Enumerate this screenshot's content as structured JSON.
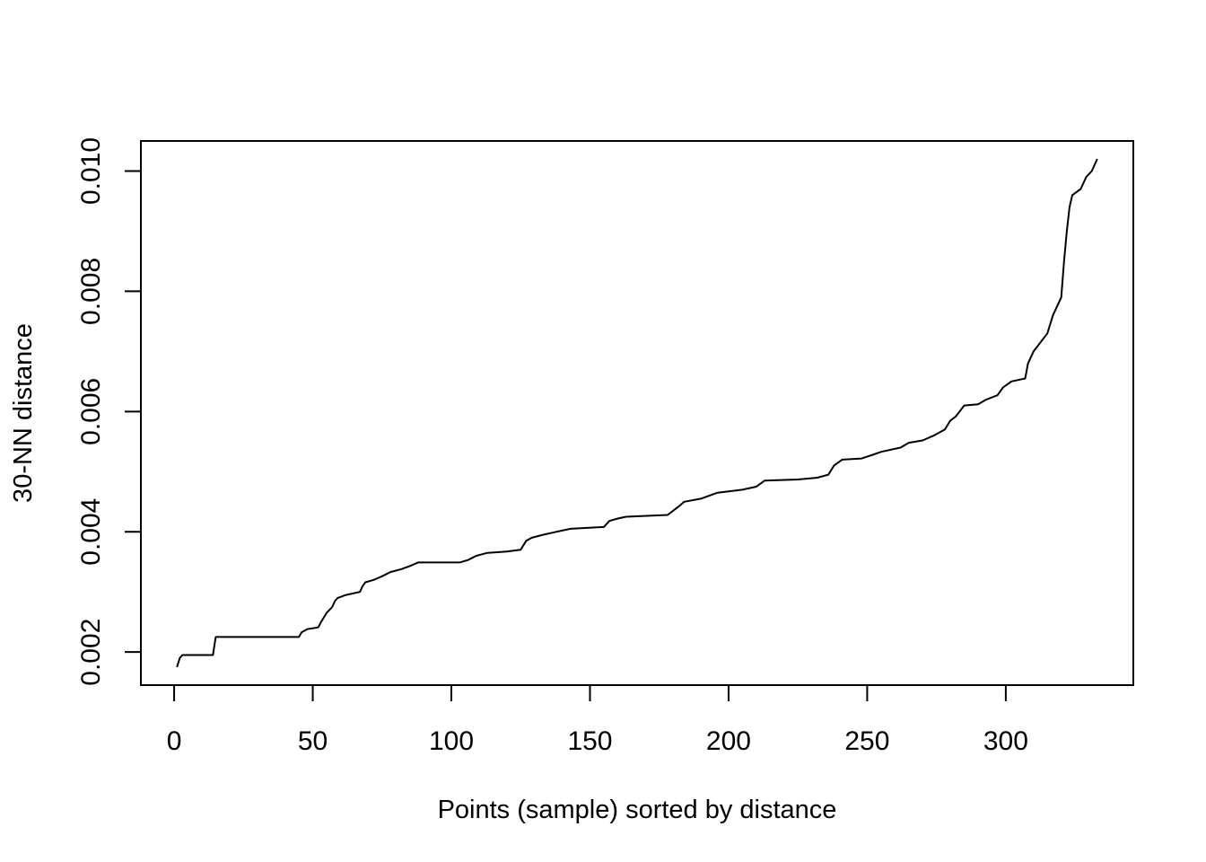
{
  "chart_data": {
    "type": "line",
    "xlabel": "Points (sample) sorted by distance",
    "ylabel": "30-NN distance",
    "xlim": [
      -12,
      346
    ],
    "ylim": [
      0.00145,
      0.0105
    ],
    "xticks": [
      {
        "value": 0,
        "label": "0"
      },
      {
        "value": 50,
        "label": "50"
      },
      {
        "value": 100,
        "label": "100"
      },
      {
        "value": 150,
        "label": "150"
      },
      {
        "value": 200,
        "label": "200"
      },
      {
        "value": 250,
        "label": "250"
      },
      {
        "value": 300,
        "label": "300"
      }
    ],
    "yticks": [
      {
        "value": 0.002,
        "label": "0.002"
      },
      {
        "value": 0.004,
        "label": "0.004"
      },
      {
        "value": 0.006,
        "label": "0.006"
      },
      {
        "value": 0.008,
        "label": "0.008"
      },
      {
        "value": 0.01,
        "label": "0.010"
      }
    ],
    "grid": false,
    "line_color": "#000000",
    "series": [
      {
        "points": [
          [
            1,
            0.00175
          ],
          [
            2,
            0.0019
          ],
          [
            3,
            0.00195
          ],
          [
            14,
            0.00195
          ],
          [
            15,
            0.00225
          ],
          [
            45,
            0.00225
          ],
          [
            46,
            0.00233
          ],
          [
            48,
            0.00238
          ],
          [
            52,
            0.00241
          ],
          [
            53,
            0.0025
          ],
          [
            55,
            0.00265
          ],
          [
            57,
            0.00275
          ],
          [
            58,
            0.00285
          ],
          [
            59,
            0.0029
          ],
          [
            62,
            0.00295
          ],
          [
            67,
            0.003
          ],
          [
            68,
            0.0031
          ],
          [
            69,
            0.00316
          ],
          [
            72,
            0.0032
          ],
          [
            75,
            0.00326
          ],
          [
            78,
            0.00333
          ],
          [
            82,
            0.00338
          ],
          [
            85,
            0.00343
          ],
          [
            88,
            0.00349
          ],
          [
            103,
            0.00349
          ],
          [
            106,
            0.00353
          ],
          [
            109,
            0.0036
          ],
          [
            113,
            0.00365
          ],
          [
            120,
            0.00367
          ],
          [
            125,
            0.0037
          ],
          [
            127,
            0.00385
          ],
          [
            129,
            0.0039
          ],
          [
            133,
            0.00395
          ],
          [
            138,
            0.004
          ],
          [
            143,
            0.00405
          ],
          [
            155,
            0.00408
          ],
          [
            157,
            0.00418
          ],
          [
            160,
            0.00422
          ],
          [
            163,
            0.00425
          ],
          [
            178,
            0.00428
          ],
          [
            180,
            0.00435
          ],
          [
            182,
            0.00442
          ],
          [
            184,
            0.0045
          ],
          [
            190,
            0.00455
          ],
          [
            193,
            0.0046
          ],
          [
            196,
            0.00465
          ],
          [
            205,
            0.0047
          ],
          [
            210,
            0.00475
          ],
          [
            213,
            0.00485
          ],
          [
            225,
            0.00487
          ],
          [
            232,
            0.0049
          ],
          [
            236,
            0.00495
          ],
          [
            238,
            0.0051
          ],
          [
            241,
            0.0052
          ],
          [
            248,
            0.00522
          ],
          [
            252,
            0.00528
          ],
          [
            255,
            0.00533
          ],
          [
            262,
            0.0054
          ],
          [
            265,
            0.00548
          ],
          [
            270,
            0.00552
          ],
          [
            274,
            0.0056
          ],
          [
            278,
            0.0057
          ],
          [
            280,
            0.00585
          ],
          [
            282,
            0.00592
          ],
          [
            285,
            0.0061
          ],
          [
            290,
            0.00612
          ],
          [
            293,
            0.0062
          ],
          [
            297,
            0.00627
          ],
          [
            299,
            0.0064
          ],
          [
            302,
            0.0065
          ],
          [
            307,
            0.00655
          ],
          [
            308,
            0.0068
          ],
          [
            310,
            0.007
          ],
          [
            315,
            0.0073
          ],
          [
            317,
            0.0076
          ],
          [
            319,
            0.0078
          ],
          [
            320,
            0.0079
          ],
          [
            321,
            0.0085
          ],
          [
            322,
            0.009
          ],
          [
            323,
            0.0094
          ],
          [
            324,
            0.0096
          ],
          [
            327,
            0.0097
          ],
          [
            329,
            0.0099
          ],
          [
            331,
            0.01
          ],
          [
            333,
            0.0102
          ]
        ]
      }
    ]
  }
}
